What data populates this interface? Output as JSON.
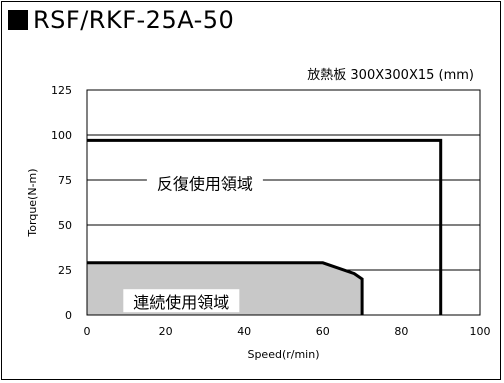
{
  "chart_data": {
    "type": "area",
    "title": "RSF/RKF-25A-50",
    "subtitle": "放熱板 300X300X15 (mm)",
    "xlabel": "Speed(r/min)",
    "ylabel": "Torque(N-m)",
    "xlim": [
      0,
      100
    ],
    "ylim": [
      0,
      125
    ],
    "xticks": [
      "0",
      "20",
      "40",
      "60",
      "80",
      "100"
    ],
    "yticks": [
      "0",
      "25",
      "50",
      "75",
      "100",
      "125"
    ],
    "grid": "horizontal",
    "regions": [
      {
        "label": "反復使用領域",
        "fill": "none",
        "stroke": "#000000",
        "boundary": [
          [
            0,
            97
          ],
          [
            90,
            97
          ],
          [
            90,
            0
          ]
        ]
      },
      {
        "label": "連続使用領域",
        "fill": "#c8c8c8",
        "stroke": "#000000",
        "boundary": [
          [
            0,
            29
          ],
          [
            60,
            29
          ],
          [
            64,
            26
          ],
          [
            68,
            23
          ],
          [
            70,
            20
          ],
          [
            70,
            0
          ]
        ]
      }
    ]
  }
}
